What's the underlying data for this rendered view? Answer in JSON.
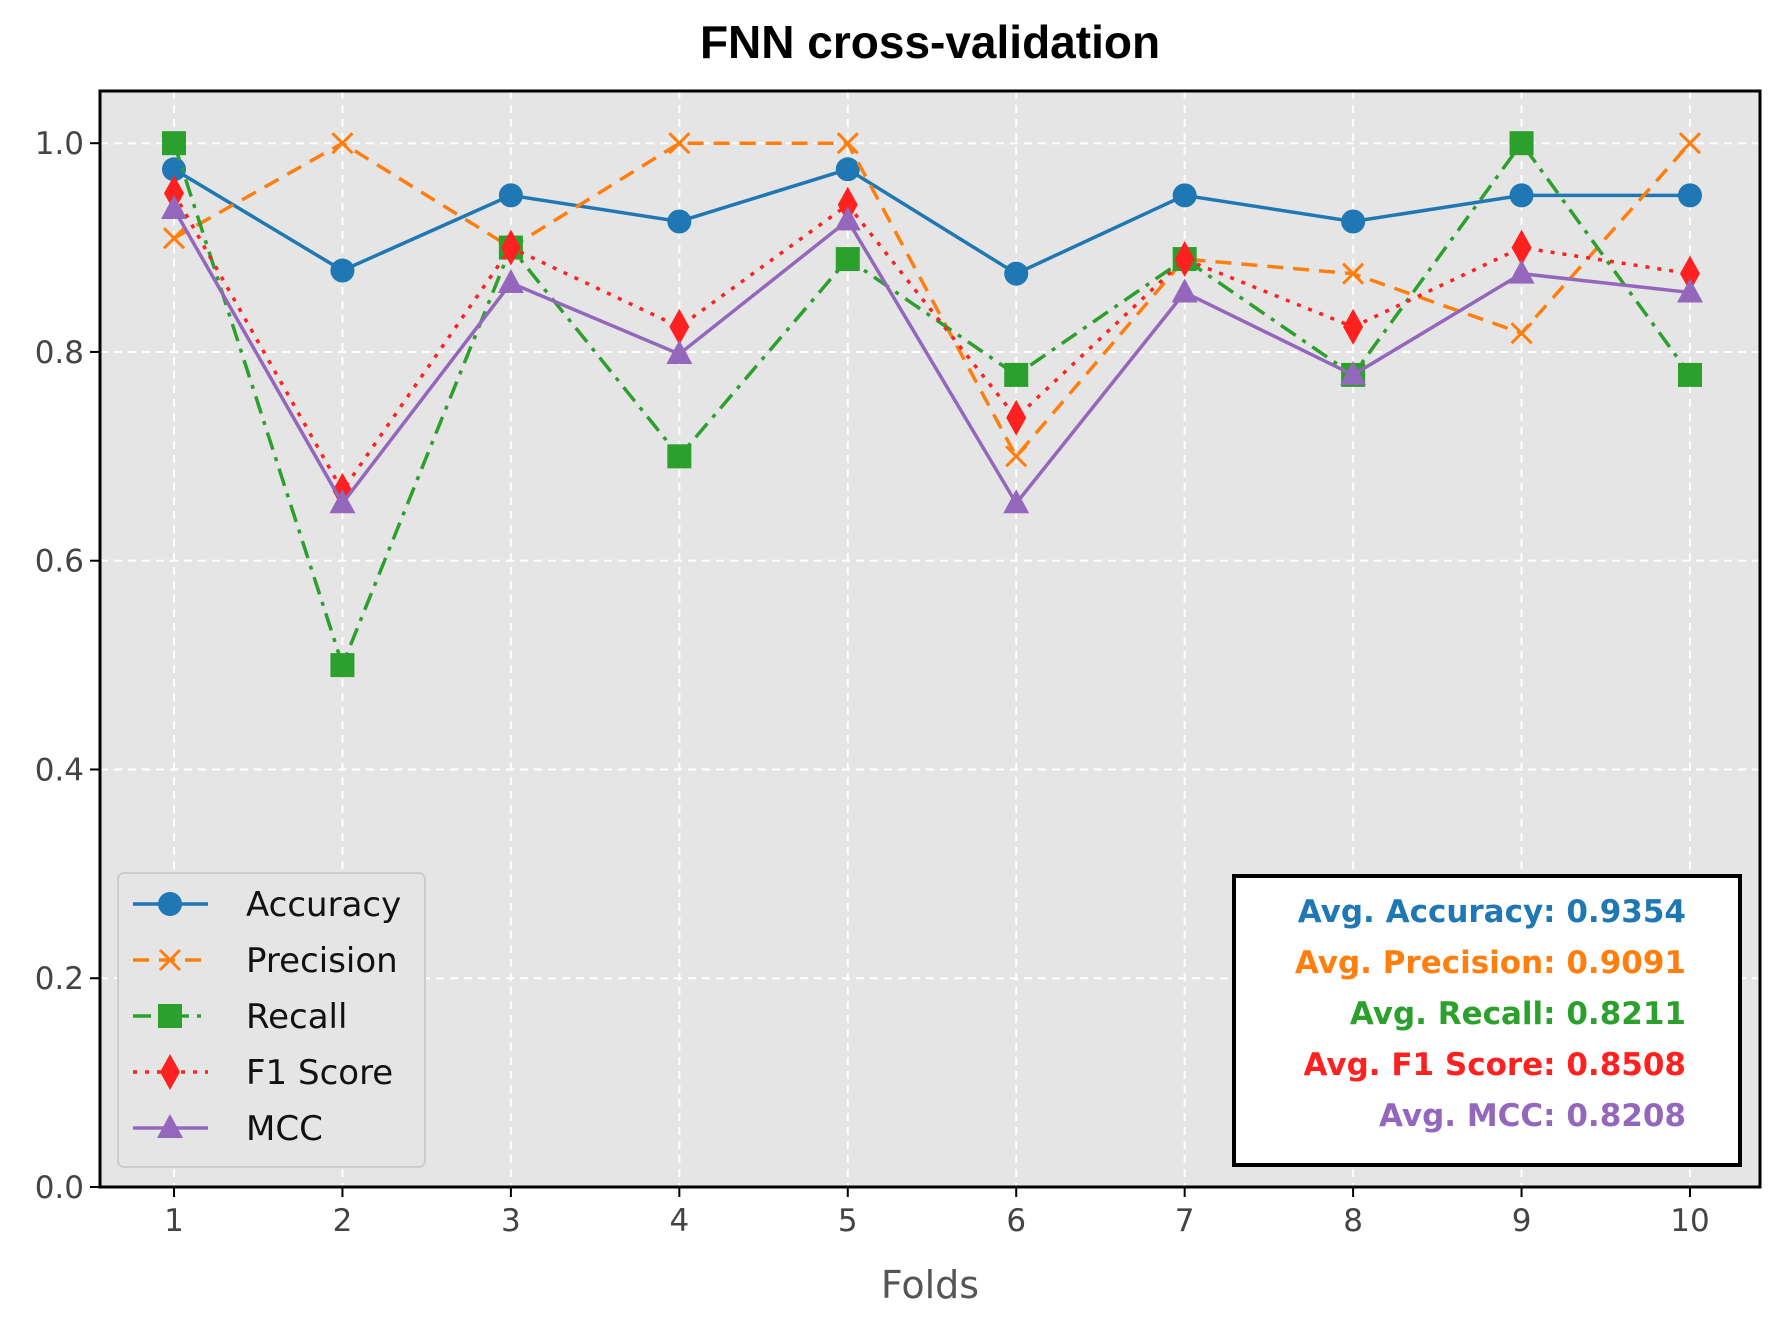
{
  "chart_data": {
    "type": "line",
    "title": "FNN cross-validation",
    "xlabel": "Folds",
    "ylabel": "",
    "x": [
      1,
      2,
      3,
      4,
      5,
      6,
      7,
      8,
      9,
      10
    ],
    "x_tick_labels": [
      "1",
      "2",
      "3",
      "4",
      "5",
      "6",
      "7",
      "8",
      "9",
      "10"
    ],
    "ylim": [
      0.0,
      1.05
    ],
    "y_ticks": [
      0.0,
      0.2,
      0.4,
      0.6,
      0.8,
      1.0
    ],
    "y_tick_labels": [
      "0.0",
      "0.2",
      "0.4",
      "0.6",
      "0.8",
      "1.0"
    ],
    "grid": true,
    "legend_position": "bottom-left",
    "series": [
      {
        "name": "Accuracy",
        "color": "#1f77b4",
        "line_style": "solid",
        "marker": "circle",
        "values": [
          0.975,
          0.878,
          0.95,
          0.925,
          0.975,
          0.875,
          0.95,
          0.925,
          0.95,
          0.95
        ]
      },
      {
        "name": "Precision",
        "color": "#ff7f0e",
        "line_style": "dashed",
        "marker": "x",
        "values": [
          0.909,
          1.0,
          0.9,
          1.0,
          1.0,
          0.7,
          0.889,
          0.875,
          0.818,
          1.0
        ]
      },
      {
        "name": "Recall",
        "color": "#2ca02c",
        "line_style": "dashdot",
        "marker": "square",
        "values": [
          1.0,
          0.5,
          0.9,
          0.7,
          0.889,
          0.778,
          0.889,
          0.778,
          1.0,
          0.778
        ]
      },
      {
        "name": "F1 Score",
        "color": "#ff2020",
        "line_style": "dotted",
        "marker": "diamond",
        "values": [
          0.952,
          0.667,
          0.9,
          0.824,
          0.941,
          0.737,
          0.889,
          0.824,
          0.9,
          0.875
        ]
      },
      {
        "name": "MCC",
        "color": "#9467bd",
        "line_style": "solid",
        "marker": "triangle",
        "values": [
          0.937,
          0.655,
          0.866,
          0.798,
          0.926,
          0.655,
          0.857,
          0.778,
          0.875,
          0.857
        ]
      }
    ],
    "summary_box": {
      "position": "bottom-right",
      "lines": [
        {
          "text": "Avg. Accuracy: 0.9354",
          "color": "#1f77b4"
        },
        {
          "text": "Avg. Precision: 0.9091",
          "color": "#ff7f0e"
        },
        {
          "text": "Avg. Recall: 0.8211",
          "color": "#2ca02c"
        },
        {
          "text": "Avg. F1 Score: 0.8508",
          "color": "#ff2020"
        },
        {
          "text": "Avg. MCC: 0.8208",
          "color": "#9467bd"
        }
      ]
    }
  }
}
